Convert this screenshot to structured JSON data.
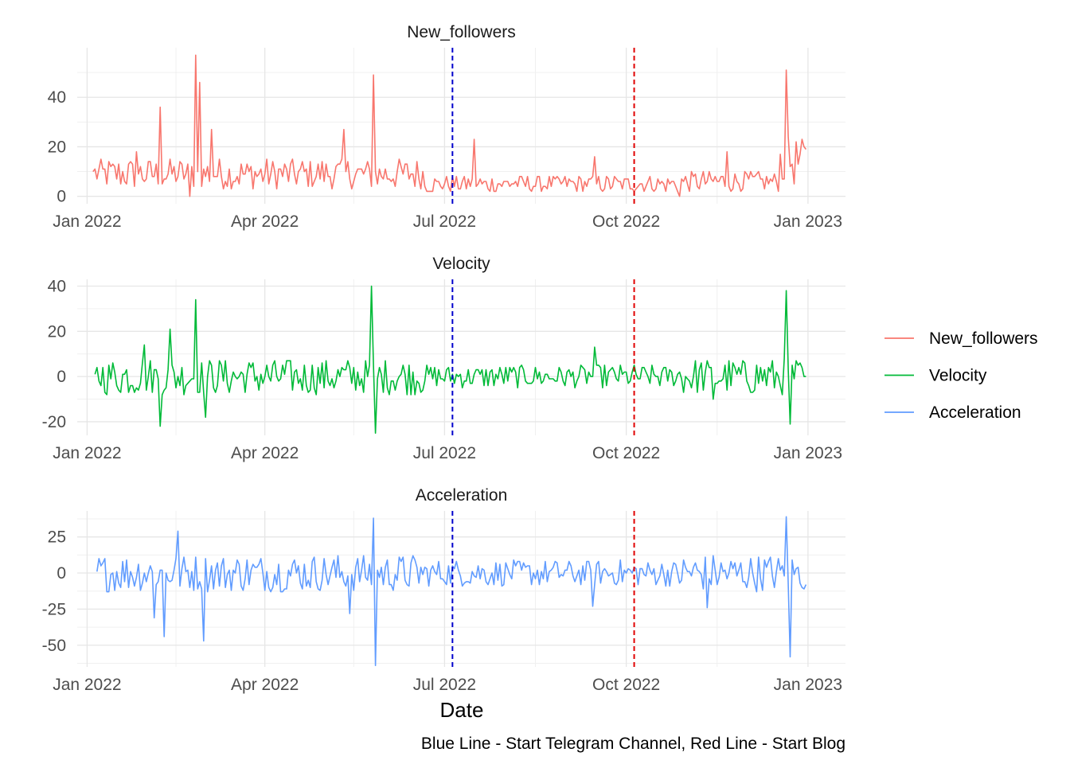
{
  "chart_data": {
    "type": "line",
    "xlabel": "Date",
    "caption": "Blue Line - Start Telegram Channel, Red Line - Start Blog",
    "x_domain": [
      "2021-12-27",
      "2023-01-20"
    ],
    "x_ticks": [
      {
        "date": "2022-01-01",
        "label": "Jan 2022"
      },
      {
        "date": "2022-04-01",
        "label": "Apr 2022"
      },
      {
        "date": "2022-07-01",
        "label": "Jul 2022"
      },
      {
        "date": "2022-10-01",
        "label": "Oct 2022"
      },
      {
        "date": "2023-01-01",
        "label": "Jan 2023"
      }
    ],
    "x_minor_ticks": [
      "2022-02-15",
      "2022-05-16",
      "2022-08-16",
      "2022-11-16"
    ],
    "vlines": [
      {
        "date": "2022-07-05",
        "color": "#0000cc",
        "meaning": "Start Telegram Channel"
      },
      {
        "date": "2022-10-05",
        "color": "#e00000",
        "meaning": "Start Blog"
      }
    ],
    "legend": {
      "position": "right",
      "entries": [
        {
          "label": "New_followers",
          "color": "#F8766D"
        },
        {
          "label": "Velocity",
          "color": "#00BA38"
        },
        {
          "label": "Acceleration",
          "color": "#619CFF"
        }
      ]
    },
    "grid": true,
    "panels": [
      {
        "strip": "New_followers",
        "color": "#F8766D",
        "ylim": [
          -3,
          60
        ],
        "y_ticks": [
          0,
          20,
          40
        ],
        "y_tick_labels": [
          "0",
          "20",
          "40"
        ],
        "start_date": "2022-01-04",
        "end_date": "2022-12-31",
        "key_points": [
          {
            "date": "2022-01-04",
            "value": 10
          },
          {
            "date": "2022-01-26",
            "value": 18
          },
          {
            "date": "2022-02-07",
            "value": 36
          },
          {
            "date": "2022-02-22",
            "value": 0
          },
          {
            "date": "2022-02-25",
            "value": 57
          },
          {
            "date": "2022-02-27",
            "value": 46
          },
          {
            "date": "2022-03-05",
            "value": 27
          },
          {
            "date": "2022-05-11",
            "value": 27
          },
          {
            "date": "2022-05-26",
            "value": 49
          },
          {
            "date": "2022-07-16",
            "value": 23
          },
          {
            "date": "2022-09-15",
            "value": 16
          },
          {
            "date": "2022-10-28",
            "value": 0
          },
          {
            "date": "2022-11-21",
            "value": 18
          },
          {
            "date": "2022-12-21",
            "value": 51
          },
          {
            "date": "2022-12-31",
            "value": 19
          }
        ]
      },
      {
        "strip": "Velocity",
        "color": "#00BA38",
        "ylim": [
          -26,
          43
        ],
        "y_ticks": [
          -20,
          0,
          20,
          40
        ],
        "y_tick_labels": [
          "-20",
          "0",
          "20",
          "40"
        ],
        "start_date": "2022-01-05",
        "end_date": "2022-12-31",
        "key_points": [
          {
            "date": "2022-01-05",
            "value": 1
          },
          {
            "date": "2022-01-30",
            "value": 14
          },
          {
            "date": "2022-02-07",
            "value": -22
          },
          {
            "date": "2022-02-12",
            "value": 21
          },
          {
            "date": "2022-02-25",
            "value": 34
          },
          {
            "date": "2022-03-02",
            "value": -18
          },
          {
            "date": "2022-05-25",
            "value": 40
          },
          {
            "date": "2022-05-27",
            "value": -25
          },
          {
            "date": "2022-09-15",
            "value": 13
          },
          {
            "date": "2022-11-14",
            "value": -10
          },
          {
            "date": "2022-12-21",
            "value": 38
          },
          {
            "date": "2022-12-23",
            "value": -21
          },
          {
            "date": "2022-12-31",
            "value": 0
          }
        ]
      },
      {
        "strip": "Acceleration",
        "color": "#619CFF",
        "ylim": [
          -65,
          43
        ],
        "y_ticks": [
          -50,
          -25,
          0,
          25
        ],
        "y_tick_labels": [
          "-50",
          "-25",
          "0",
          "25"
        ],
        "start_date": "2022-01-06",
        "end_date": "2022-12-31",
        "key_points": [
          {
            "date": "2022-01-06",
            "value": 1
          },
          {
            "date": "2022-02-04",
            "value": -31
          },
          {
            "date": "2022-02-09",
            "value": -44
          },
          {
            "date": "2022-02-16",
            "value": 29
          },
          {
            "date": "2022-03-01",
            "value": -47
          },
          {
            "date": "2022-05-14",
            "value": -28
          },
          {
            "date": "2022-05-26",
            "value": 38
          },
          {
            "date": "2022-05-27",
            "value": -64
          },
          {
            "date": "2022-09-14",
            "value": -23
          },
          {
            "date": "2022-11-11",
            "value": -24
          },
          {
            "date": "2022-12-21",
            "value": 39
          },
          {
            "date": "2022-12-23",
            "value": -58
          },
          {
            "date": "2022-12-31",
            "value": -8
          }
        ]
      }
    ]
  }
}
